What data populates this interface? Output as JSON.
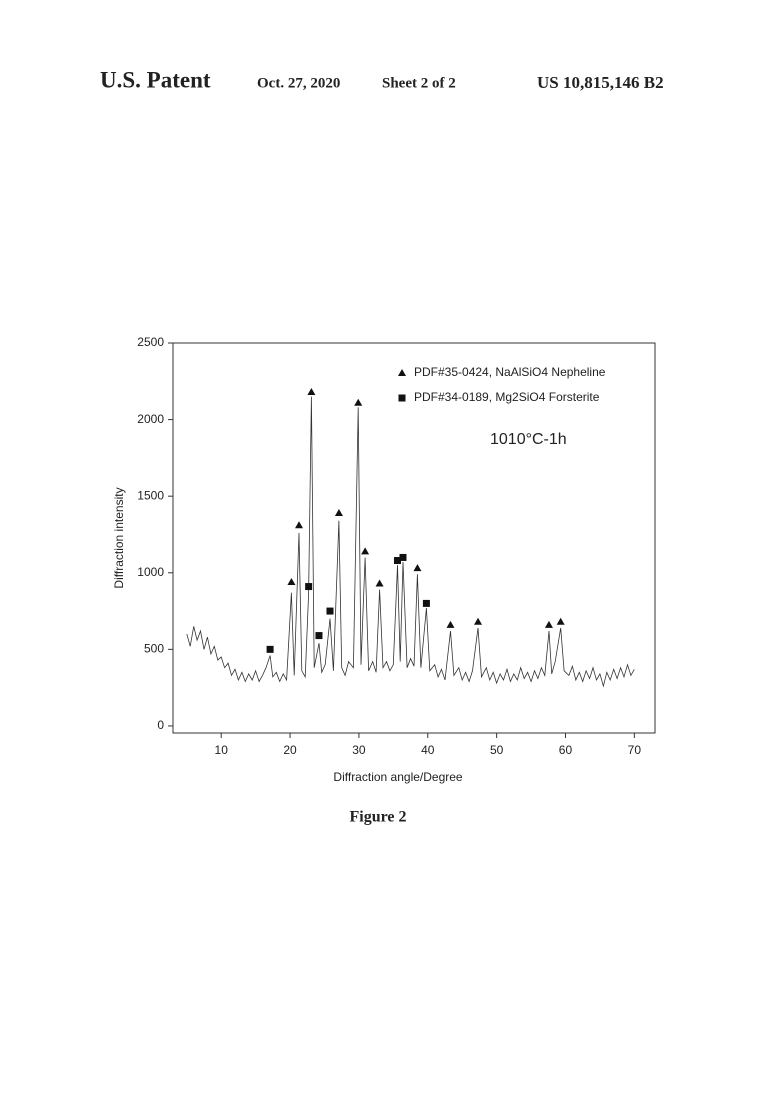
{
  "header": {
    "left": "U.S. Patent",
    "date": "Oct. 27, 2020",
    "sheet": "Sheet 2 of 2",
    "number": "US 10,815,146 B2"
  },
  "caption": "Figure 2",
  "chart_data": {
    "type": "line",
    "xlabel": "Diffraction angle/Degree",
    "ylabel": "Diffraction intensity",
    "annotation": "1010°C-1h",
    "xlim": [
      3,
      73
    ],
    "ylim": [
      -46,
      2500
    ],
    "xticks": [
      10,
      20,
      30,
      40,
      50,
      60,
      70
    ],
    "yticks": [
      0,
      500,
      1000,
      1500,
      2000,
      2500
    ],
    "color": "#333333",
    "x": [
      5,
      5.5,
      6,
      6.5,
      7,
      7.5,
      8,
      8.5,
      9,
      9.5,
      10,
      10.5,
      11,
      11.5,
      12,
      12.5,
      13,
      13.5,
      14,
      14.5,
      15,
      15.5,
      16,
      16.5,
      17.1,
      17.5,
      18,
      18.5,
      19,
      19.5,
      20.2,
      20.6,
      21.3,
      21.7,
      22.2,
      22.7,
      23.1,
      23.5,
      24.2,
      24.6,
      25.1,
      25.8,
      26.3,
      27.1,
      27.5,
      28,
      28.5,
      29.2,
      29.9,
      30.3,
      30.9,
      31.4,
      32,
      32.5,
      33,
      33.5,
      34,
      34.5,
      35,
      35.6,
      36,
      36.4,
      37,
      37.5,
      38,
      38.5,
      39,
      39.8,
      40.3,
      41,
      41.5,
      42,
      42.5,
      43.3,
      43.8,
      44.5,
      45,
      45.5,
      46,
      46.5,
      47.3,
      47.8,
      48.5,
      49,
      49.5,
      50,
      50.5,
      51,
      51.5,
      52,
      52.5,
      53,
      53.5,
      54,
      54.5,
      55,
      55.5,
      56,
      56.5,
      57,
      57.6,
      58,
      58.5,
      59.3,
      59.8,
      60.5,
      61,
      61.5,
      62,
      62.5,
      63,
      63.5,
      64,
      64.5,
      65,
      65.5,
      66,
      66.5,
      67,
      67.5,
      68,
      68.5,
      69,
      69.5,
      70
    ],
    "values": [
      600,
      520,
      650,
      560,
      620,
      500,
      580,
      470,
      520,
      430,
      450,
      380,
      410,
      330,
      370,
      300,
      350,
      290,
      340,
      300,
      360,
      290,
      330,
      380,
      460,
      320,
      350,
      290,
      340,
      300,
      870,
      330,
      1260,
      360,
      320,
      860,
      2150,
      380,
      540,
      350,
      400,
      700,
      360,
      1340,
      380,
      330,
      420,
      380,
      2080,
      400,
      1100,
      360,
      420,
      350,
      890,
      380,
      420,
      360,
      400,
      1050,
      420,
      1070,
      380,
      440,
      390,
      990,
      380,
      770,
      360,
      400,
      320,
      370,
      300,
      620,
      330,
      380,
      300,
      350,
      290,
      360,
      640,
      320,
      380,
      300,
      350,
      280,
      340,
      300,
      370,
      290,
      340,
      300,
      380,
      310,
      350,
      290,
      360,
      310,
      380,
      330,
      620,
      340,
      420,
      640,
      360,
      330,
      390,
      300,
      350,
      290,
      360,
      310,
      380,
      300,
      340,
      260,
      350,
      300,
      370,
      310,
      380,
      320,
      400,
      330,
      370
    ],
    "markers": [
      {
        "name": "PDF#35-0424, NaAlSiO4  Nepheline",
        "marker": "triangle",
        "color": "#111111",
        "x": [
          20.2,
          21.3,
          23.1,
          27.1,
          29.9,
          30.9,
          33,
          38.5,
          43.3,
          47.3,
          57.6,
          59.3
        ],
        "values": [
          940,
          1310,
          2180,
          1390,
          2110,
          1140,
          930,
          1030,
          660,
          680,
          660,
          680
        ]
      },
      {
        "name": "PDF#34-0189, Mg2SiO4   Forsterite",
        "marker": "square",
        "color": "#111111",
        "x": [
          17.1,
          22.7,
          24.2,
          25.8,
          35.6,
          36.4,
          39.8
        ],
        "values": [
          500,
          910,
          590,
          750,
          1080,
          1100,
          800
        ]
      }
    ]
  }
}
